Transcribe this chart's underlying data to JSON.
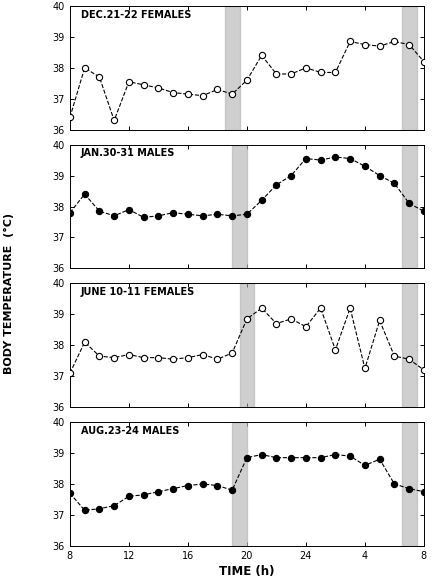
{
  "title": "BODY TEMPERATURE  (°C)",
  "xlabel": "TIME (h)",
  "ylim": [
    36,
    40
  ],
  "yticks": [
    36,
    37,
    38,
    39,
    40
  ],
  "shade_color": "#b0b0b0",
  "shade_alpha": 0.6,
  "panels": [
    {
      "title": "DEC.21-22 FEMALES",
      "marker": "open",
      "shade1": [
        18.5,
        19.5
      ],
      "shade2": [
        30.5,
        31.5
      ],
      "x": [
        8,
        9,
        10,
        11,
        12,
        13,
        14,
        15,
        16,
        17,
        18,
        19,
        20,
        21,
        22,
        23,
        24,
        25,
        26,
        27,
        28,
        29,
        30,
        31,
        32
      ],
      "y": [
        36.4,
        38.0,
        37.7,
        36.3,
        37.55,
        37.45,
        37.35,
        37.2,
        37.15,
        37.1,
        37.3,
        37.15,
        37.6,
        38.4,
        37.8,
        37.8,
        38.0,
        37.85,
        37.85,
        38.85,
        38.75,
        38.7,
        38.85,
        38.75,
        38.2
      ]
    },
    {
      "title": "JAN.30-31 MALES",
      "marker": "filled",
      "shade1": [
        19.0,
        20.0
      ],
      "shade2": [
        30.5,
        31.5
      ],
      "x": [
        8,
        9,
        10,
        11,
        12,
        13,
        14,
        15,
        16,
        17,
        18,
        19,
        20,
        21,
        22,
        23,
        24,
        25,
        26,
        27,
        28,
        29,
        30,
        31,
        32
      ],
      "y": [
        37.8,
        38.4,
        37.85,
        37.7,
        37.9,
        37.65,
        37.7,
        37.8,
        37.75,
        37.7,
        37.75,
        37.7,
        37.75,
        38.2,
        38.7,
        39.0,
        39.55,
        39.5,
        39.6,
        39.55,
        39.3,
        39.0,
        38.75,
        38.1,
        37.85
      ]
    },
    {
      "title": "JUNE 10-11 FEMALES",
      "marker": "open",
      "shade1": [
        19.5,
        20.5
      ],
      "shade2": [
        30.5,
        31.5
      ],
      "x": [
        8,
        9,
        10,
        11,
        12,
        13,
        14,
        15,
        16,
        17,
        18,
        19,
        20,
        21,
        22,
        23,
        24,
        25,
        26,
        27,
        28,
        29,
        30,
        31,
        32
      ],
      "y": [
        37.1,
        38.1,
        37.65,
        37.6,
        37.7,
        37.6,
        37.6,
        37.55,
        37.6,
        37.7,
        37.55,
        37.75,
        38.85,
        39.2,
        38.7,
        38.85,
        38.6,
        39.2,
        37.85,
        39.2,
        37.25,
        38.8,
        37.65,
        37.55,
        37.2
      ]
    },
    {
      "title": "AUG.23-24 MALES",
      "marker": "filled",
      "shade1": [
        19.0,
        20.0
      ],
      "shade2": [
        30.5,
        31.5
      ],
      "x": [
        8,
        9,
        10,
        11,
        12,
        13,
        14,
        15,
        16,
        17,
        18,
        19,
        20,
        21,
        22,
        23,
        24,
        25,
        26,
        27,
        28,
        29,
        30,
        31,
        32
      ],
      "y": [
        37.7,
        37.15,
        37.2,
        37.3,
        37.6,
        37.65,
        37.75,
        37.85,
        37.95,
        38.0,
        37.95,
        37.8,
        38.85,
        38.95,
        38.85,
        38.85,
        38.85,
        38.85,
        38.95,
        38.9,
        38.6,
        38.8,
        38.0,
        37.85,
        37.75
      ]
    }
  ]
}
